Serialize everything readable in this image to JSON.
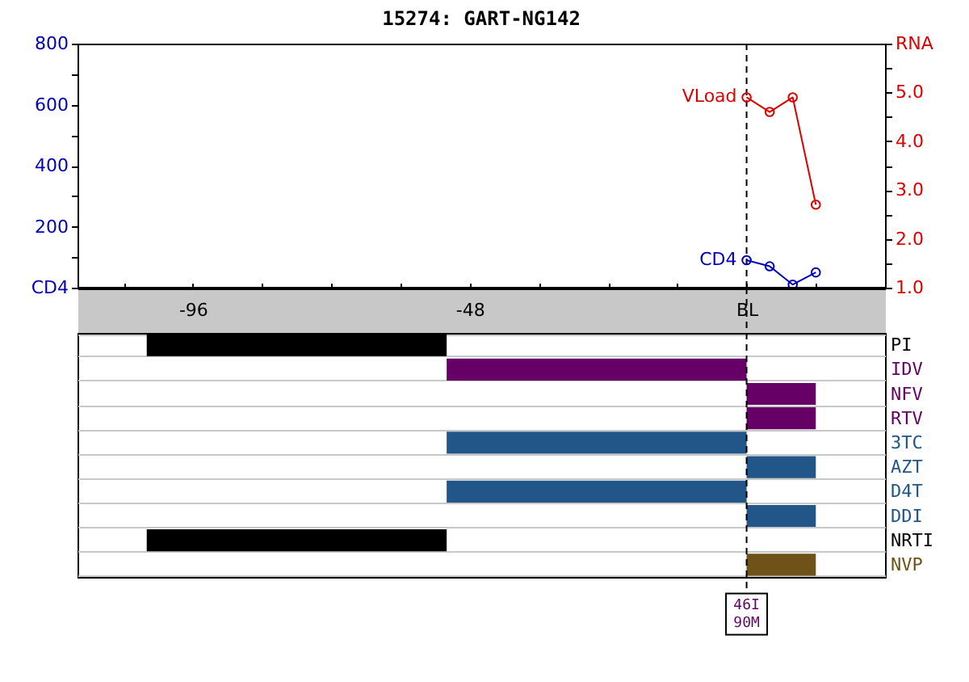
{
  "chart_data": [
    {
      "type": "line",
      "title": "15274: GART-NG142",
      "x": [
        0,
        4,
        8,
        12
      ],
      "xlim": [
        -116,
        24
      ],
      "xticks": [
        {
          "value": -108,
          "label": null
        },
        -96,
        {
          "value": -84,
          "label": null
        },
        {
          "value": -72,
          "label": null
        },
        {
          "value": -60,
          "label": null
        },
        -48,
        {
          "value": -36,
          "label": null
        },
        {
          "value": -24,
          "label": null
        },
        {
          "value": -12,
          "label": null
        },
        {
          "value": 0,
          "label": "BL"
        },
        {
          "value": 12,
          "label": null
        }
      ],
      "ylim": [
        0,
        800
      ],
      "yticks": [
        {
          "value": 0,
          "label": "CD4"
        },
        {
          "value": 100,
          "label": null
        },
        200,
        {
          "value": 300,
          "label": null
        },
        400,
        {
          "value": 500,
          "label": null
        },
        600,
        {
          "value": 700,
          "label": null
        },
        800
      ],
      "y2lim": [
        1,
        6
      ],
      "y2ticks": [
        {
          "value": 1,
          "label": "1.0"
        },
        {
          "value": 1.5,
          "label": null
        },
        {
          "value": 2,
          "label": "2.0"
        },
        {
          "value": 2.5,
          "label": null
        },
        {
          "value": 3,
          "label": "3.0"
        },
        {
          "value": 3.5,
          "label": null
        },
        {
          "value": 4,
          "label": "4.0"
        },
        {
          "value": 4.5,
          "label": null
        },
        {
          "value": 5,
          "label": "5.0"
        },
        {
          "value": 5.5,
          "label": null
        },
        {
          "value": 6,
          "label": "RNA"
        }
      ],
      "series": [
        {
          "name": "CD4",
          "color": "#0000bb",
          "values": [
            90,
            70,
            10,
            50
          ]
        },
        {
          "name": "VLoad",
          "color": "#dd0000",
          "axis": "y2",
          "values": [
            4.9,
            4.6,
            4.9,
            2.7
          ]
        }
      ],
      "marker": "circle",
      "line_style": "solid",
      "ref_lines": [
        {
          "axis": "x",
          "value": 0,
          "color": "#000000",
          "line_style": "dashed"
        }
      ]
    },
    {
      "type": "bar",
      "orientation": "horizontal",
      "categories": [
        "PI",
        "IDV",
        "NFV",
        "RTV",
        "3TC",
        "AZT",
        "D4T",
        "DDI",
        "NRTI",
        "NVP"
      ],
      "base": [
        -104,
        -52,
        0,
        0,
        -52,
        0,
        -52,
        0,
        -104,
        0
      ],
      "values": [
        52,
        52,
        12,
        12,
        52,
        12,
        52,
        12,
        52,
        12
      ],
      "colors": [
        "#000000",
        "#660066",
        "#660066",
        "#660066",
        "#225588",
        "#225588",
        "#225588",
        "#225588",
        "#000000",
        "#6e5217"
      ],
      "xlim": [
        -116,
        24
      ],
      "tick_labels": "y",
      "grid": "y",
      "ref_lines": [
        {
          "axis": "x",
          "value": 0,
          "label": "46I\n90M",
          "color": "#000000",
          "line_style": "dashed"
        }
      ]
    }
  ]
}
